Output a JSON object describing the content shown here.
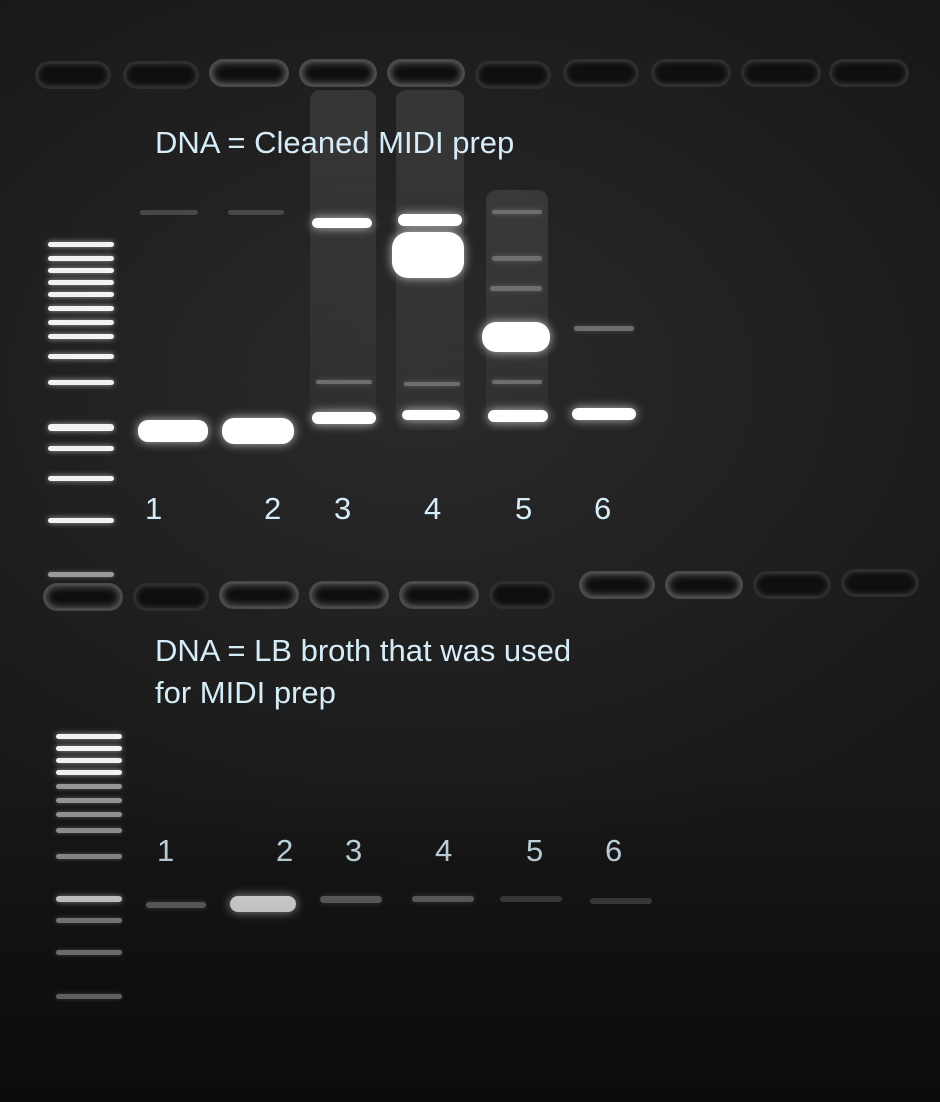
{
  "top_section": {
    "caption": "DNA = Cleaned MIDI prep",
    "lanes": [
      "1",
      "2",
      "3",
      "4",
      "5",
      "6"
    ]
  },
  "bottom_section": {
    "caption_line1": "DNA = LB broth that was used",
    "caption_line2": "for MIDI prep",
    "lanes": [
      "1",
      "2",
      "3",
      "4",
      "5",
      "6"
    ]
  },
  "colors": {
    "gel_background": "#222222",
    "band": "#ffffff",
    "label_text": "#d6ecf8"
  }
}
